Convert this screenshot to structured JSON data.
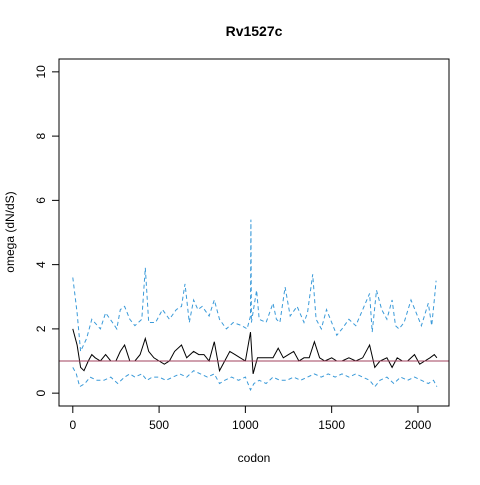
{
  "chart_data": {
    "type": "line",
    "title": "Rv1527c",
    "xlabel": "codon",
    "ylabel": "omega (dN/dS)",
    "xlim": [
      -80,
      2180
    ],
    "ylim": [
      -0.4,
      10.4
    ],
    "x_ticks": [
      0,
      500,
      1000,
      1500,
      2000
    ],
    "y_ticks": [
      0,
      2,
      4,
      6,
      8,
      10
    ],
    "grid": false,
    "legend": "none",
    "reference_line": {
      "y": 1,
      "color": "#a0405c"
    },
    "series": [
      {
        "style": "dashed",
        "color": "#3a9ad9",
        "points": [
          [
            0,
            3.6
          ],
          [
            25,
            2.5
          ],
          [
            45,
            1.3
          ],
          [
            80,
            1.7
          ],
          [
            110,
            2.3
          ],
          [
            160,
            2.0
          ],
          [
            190,
            2.5
          ],
          [
            230,
            2.2
          ],
          [
            255,
            2.0
          ],
          [
            275,
            2.6
          ],
          [
            300,
            2.7
          ],
          [
            330,
            2.3
          ],
          [
            360,
            2.1
          ],
          [
            400,
            2.3
          ],
          [
            420,
            3.9
          ],
          [
            440,
            2.2
          ],
          [
            480,
            2.2
          ],
          [
            520,
            2.6
          ],
          [
            560,
            2.3
          ],
          [
            600,
            2.6
          ],
          [
            630,
            2.7
          ],
          [
            650,
            3.4
          ],
          [
            675,
            2.2
          ],
          [
            700,
            2.9
          ],
          [
            725,
            2.6
          ],
          [
            750,
            2.7
          ],
          [
            790,
            2.4
          ],
          [
            820,
            2.9
          ],
          [
            850,
            2.3
          ],
          [
            890,
            2.0
          ],
          [
            930,
            2.2
          ],
          [
            980,
            2.1
          ],
          [
            1010,
            2.0
          ],
          [
            1030,
            2.4
          ],
          [
            1032,
            5.4
          ],
          [
            1035,
            2.2
          ],
          [
            1065,
            3.2
          ],
          [
            1080,
            2.3
          ],
          [
            1120,
            2.2
          ],
          [
            1160,
            2.8
          ],
          [
            1180,
            2.3
          ],
          [
            1200,
            2.2
          ],
          [
            1230,
            3.3
          ],
          [
            1260,
            2.4
          ],
          [
            1300,
            2.7
          ],
          [
            1340,
            2.2
          ],
          [
            1360,
            2.5
          ],
          [
            1390,
            3.7
          ],
          [
            1410,
            2.3
          ],
          [
            1440,
            2.0
          ],
          [
            1470,
            2.6
          ],
          [
            1500,
            2.2
          ],
          [
            1530,
            1.8
          ],
          [
            1560,
            2.0
          ],
          [
            1600,
            2.3
          ],
          [
            1640,
            2.1
          ],
          [
            1680,
            2.6
          ],
          [
            1720,
            3.1
          ],
          [
            1735,
            1.9
          ],
          [
            1760,
            3.2
          ],
          [
            1790,
            2.6
          ],
          [
            1820,
            2.3
          ],
          [
            1850,
            2.9
          ],
          [
            1870,
            2.1
          ],
          [
            1890,
            2.0
          ],
          [
            1920,
            2.2
          ],
          [
            1960,
            2.9
          ],
          [
            1990,
            2.5
          ],
          [
            2020,
            2.1
          ],
          [
            2060,
            2.8
          ],
          [
            2080,
            2.1
          ],
          [
            2095,
            2.9
          ],
          [
            2105,
            3.5
          ]
        ]
      },
      {
        "style": "solid",
        "color": "#000000",
        "points": [
          [
            0,
            2.0
          ],
          [
            25,
            1.5
          ],
          [
            45,
            0.8
          ],
          [
            65,
            0.7
          ],
          [
            90,
            1.0
          ],
          [
            110,
            1.2
          ],
          [
            130,
            1.1
          ],
          [
            160,
            1.0
          ],
          [
            190,
            1.2
          ],
          [
            220,
            1.0
          ],
          [
            250,
            1.0
          ],
          [
            275,
            1.3
          ],
          [
            300,
            1.5
          ],
          [
            330,
            1.0
          ],
          [
            360,
            1.0
          ],
          [
            390,
            1.2
          ],
          [
            420,
            1.7
          ],
          [
            440,
            1.3
          ],
          [
            470,
            1.1
          ],
          [
            500,
            1.0
          ],
          [
            530,
            0.9
          ],
          [
            560,
            1.0
          ],
          [
            590,
            1.3
          ],
          [
            630,
            1.5
          ],
          [
            660,
            1.1
          ],
          [
            700,
            1.3
          ],
          [
            730,
            1.2
          ],
          [
            760,
            1.2
          ],
          [
            790,
            1.0
          ],
          [
            820,
            1.6
          ],
          [
            850,
            0.7
          ],
          [
            880,
            1.0
          ],
          [
            910,
            1.3
          ],
          [
            940,
            1.2
          ],
          [
            970,
            1.1
          ],
          [
            1000,
            1.0
          ],
          [
            1030,
            1.9
          ],
          [
            1045,
            0.6
          ],
          [
            1070,
            1.1
          ],
          [
            1100,
            1.1
          ],
          [
            1130,
            1.1
          ],
          [
            1160,
            1.1
          ],
          [
            1190,
            1.4
          ],
          [
            1220,
            1.1
          ],
          [
            1250,
            1.2
          ],
          [
            1280,
            1.3
          ],
          [
            1310,
            1.0
          ],
          [
            1340,
            1.1
          ],
          [
            1370,
            1.1
          ],
          [
            1400,
            1.6
          ],
          [
            1430,
            1.1
          ],
          [
            1460,
            1.0
          ],
          [
            1500,
            1.1
          ],
          [
            1530,
            1.0
          ],
          [
            1560,
            1.0
          ],
          [
            1600,
            1.1
          ],
          [
            1640,
            1.0
          ],
          [
            1680,
            1.1
          ],
          [
            1720,
            1.5
          ],
          [
            1750,
            0.8
          ],
          [
            1780,
            1.0
          ],
          [
            1820,
            1.1
          ],
          [
            1850,
            0.8
          ],
          [
            1880,
            1.1
          ],
          [
            1910,
            1.0
          ],
          [
            1940,
            1.0
          ],
          [
            1980,
            1.2
          ],
          [
            2010,
            0.9
          ],
          [
            2040,
            1.0
          ],
          [
            2070,
            1.1
          ],
          [
            2095,
            1.2
          ],
          [
            2110,
            1.1
          ]
        ]
      },
      {
        "style": "dashed",
        "color": "#3a9ad9",
        "points": [
          [
            0,
            0.8
          ],
          [
            20,
            0.6
          ],
          [
            40,
            0.2
          ],
          [
            70,
            0.3
          ],
          [
            100,
            0.5
          ],
          [
            140,
            0.4
          ],
          [
            180,
            0.4
          ],
          [
            220,
            0.5
          ],
          [
            260,
            0.3
          ],
          [
            300,
            0.5
          ],
          [
            330,
            0.6
          ],
          [
            360,
            0.5
          ],
          [
            400,
            0.6
          ],
          [
            430,
            0.4
          ],
          [
            460,
            0.5
          ],
          [
            500,
            0.5
          ],
          [
            540,
            0.4
          ],
          [
            580,
            0.5
          ],
          [
            620,
            0.6
          ],
          [
            660,
            0.5
          ],
          [
            700,
            0.7
          ],
          [
            740,
            0.6
          ],
          [
            780,
            0.5
          ],
          [
            820,
            0.6
          ],
          [
            850,
            0.3
          ],
          [
            880,
            0.4
          ],
          [
            920,
            0.5
          ],
          [
            960,
            0.4
          ],
          [
            1000,
            0.5
          ],
          [
            1030,
            0.1
          ],
          [
            1050,
            0.3
          ],
          [
            1080,
            0.4
          ],
          [
            1120,
            0.3
          ],
          [
            1160,
            0.5
          ],
          [
            1200,
            0.4
          ],
          [
            1240,
            0.4
          ],
          [
            1280,
            0.5
          ],
          [
            1320,
            0.4
          ],
          [
            1360,
            0.5
          ],
          [
            1400,
            0.6
          ],
          [
            1440,
            0.5
          ],
          [
            1480,
            0.6
          ],
          [
            1520,
            0.5
          ],
          [
            1560,
            0.6
          ],
          [
            1600,
            0.5
          ],
          [
            1640,
            0.6
          ],
          [
            1680,
            0.5
          ],
          [
            1720,
            0.4
          ],
          [
            1750,
            0.2
          ],
          [
            1780,
            0.4
          ],
          [
            1820,
            0.5
          ],
          [
            1860,
            0.3
          ],
          [
            1900,
            0.5
          ],
          [
            1940,
            0.4
          ],
          [
            1980,
            0.5
          ],
          [
            2020,
            0.4
          ],
          [
            2060,
            0.3
          ],
          [
            2090,
            0.4
          ],
          [
            2110,
            0.2
          ]
        ]
      }
    ]
  }
}
